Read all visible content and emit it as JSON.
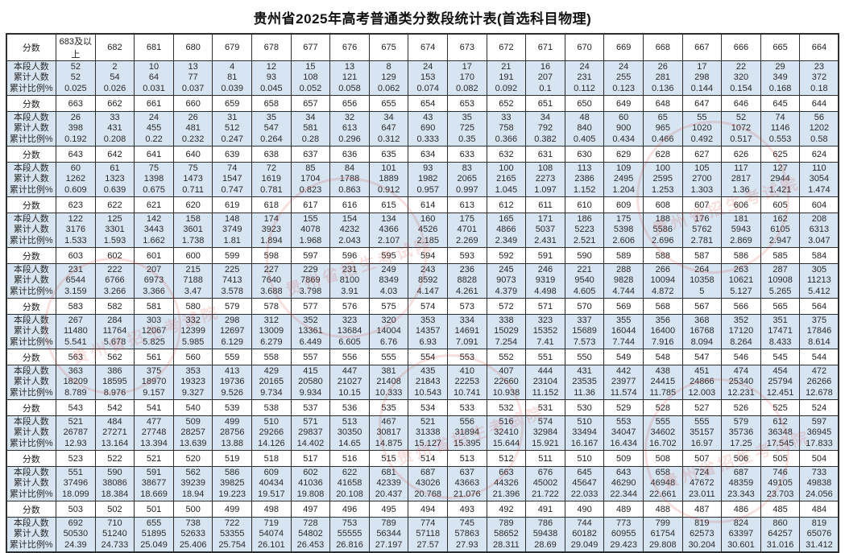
{
  "title": "贵州省2025年高考普通类分数段统计表(首选科目物理)",
  "row_labels": {
    "score": "分数",
    "count": "本段人数",
    "cumulative": "累计人数",
    "percent": "累计比例%"
  },
  "watermark_text": "贵州省招生考试院",
  "colors": {
    "band_bg": "#d7e5f2",
    "border": "#2e2e2e",
    "watermark": "#cf3f3a"
  },
  "bands": [
    {
      "scores": [
        "683及以上",
        "682",
        "681",
        "680",
        "679",
        "678",
        "677",
        "676",
        "675",
        "674",
        "673",
        "672",
        "671",
        "670",
        "669",
        "668",
        "667",
        "666",
        "665",
        "664"
      ],
      "counts": [
        "52",
        "2",
        "10",
        "13",
        "4",
        "12",
        "15",
        "13",
        "8",
        "24",
        "17",
        "21",
        "16",
        "24",
        "24",
        "26",
        "17",
        "22",
        "29",
        "23"
      ],
      "cumulative": [
        "52",
        "54",
        "64",
        "77",
        "81",
        "93",
        "108",
        "121",
        "129",
        "153",
        "170",
        "191",
        "207",
        "231",
        "255",
        "281",
        "298",
        "320",
        "349",
        "372"
      ],
      "percents": [
        "0.025",
        "0.026",
        "0.031",
        "0.037",
        "0.039",
        "0.045",
        "0.052",
        "0.058",
        "0.062",
        "0.074",
        "0.082",
        "0.092",
        "0.1",
        "0.112",
        "0.123",
        "0.136",
        "0.144",
        "0.154",
        "0.168",
        "0.18"
      ]
    },
    {
      "scores": [
        "663",
        "662",
        "661",
        "660",
        "659",
        "658",
        "657",
        "656",
        "655",
        "654",
        "653",
        "652",
        "651",
        "650",
        "649",
        "648",
        "647",
        "646",
        "645",
        "644"
      ],
      "counts": [
        "26",
        "33",
        "24",
        "26",
        "31",
        "35",
        "34",
        "32",
        "34",
        "43",
        "35",
        "33",
        "34",
        "48",
        "60",
        "65",
        "55",
        "52",
        "74",
        "56"
      ],
      "cumulative": [
        "398",
        "431",
        "455",
        "481",
        "512",
        "547",
        "581",
        "613",
        "647",
        "690",
        "725",
        "758",
        "792",
        "840",
        "900",
        "965",
        "1020",
        "1072",
        "1146",
        "1202"
      ],
      "percents": [
        "0.192",
        "0.208",
        "0.22",
        "0.232",
        "0.247",
        "0.264",
        "0.28",
        "0.296",
        "0.312",
        "0.333",
        "0.35",
        "0.366",
        "0.382",
        "0.405",
        "0.434",
        "0.466",
        "0.492",
        "0.517",
        "0.553",
        "0.58"
      ]
    },
    {
      "scores": [
        "643",
        "642",
        "641",
        "640",
        "639",
        "638",
        "637",
        "636",
        "635",
        "634",
        "633",
        "632",
        "631",
        "630",
        "629",
        "628",
        "627",
        "626",
        "625",
        "624"
      ],
      "counts": [
        "60",
        "61",
        "75",
        "75",
        "74",
        "72",
        "85",
        "84",
        "101",
        "93",
        "83",
        "100",
        "108",
        "113",
        "109",
        "100",
        "105",
        "117",
        "127",
        "110"
      ],
      "cumulative": [
        "1262",
        "1323",
        "1398",
        "1473",
        "1547",
        "1619",
        "1704",
        "1788",
        "1889",
        "1982",
        "2065",
        "2165",
        "2273",
        "2386",
        "2495",
        "2595",
        "2700",
        "2817",
        "2944",
        "3054"
      ],
      "percents": [
        "0.609",
        "0.639",
        "0.675",
        "0.711",
        "0.747",
        "0.781",
        "0.823",
        "0.863",
        "0.912",
        "0.957",
        "0.997",
        "1.045",
        "1.097",
        "1.152",
        "1.204",
        "1.253",
        "1.303",
        "1.36",
        "1.421",
        "1.474"
      ]
    },
    {
      "scores": [
        "623",
        "622",
        "621",
        "620",
        "619",
        "618",
        "617",
        "616",
        "615",
        "614",
        "613",
        "612",
        "611",
        "610",
        "609",
        "608",
        "607",
        "606",
        "605",
        "604"
      ],
      "counts": [
        "122",
        "125",
        "142",
        "158",
        "148",
        "174",
        "155",
        "154",
        "134",
        "160",
        "175",
        "165",
        "171",
        "186",
        "175",
        "188",
        "176",
        "181",
        "162",
        "208"
      ],
      "cumulative": [
        "3176",
        "3301",
        "3443",
        "3601",
        "3749",
        "3923",
        "4078",
        "4232",
        "4366",
        "4526",
        "4701",
        "4866",
        "5037",
        "5223",
        "5398",
        "5586",
        "5762",
        "5943",
        "6105",
        "6313"
      ],
      "percents": [
        "1.533",
        "1.593",
        "1.662",
        "1.738",
        "1.81",
        "1.894",
        "1.968",
        "2.043",
        "2.107",
        "2.185",
        "2.269",
        "2.349",
        "2.431",
        "2.521",
        "2.606",
        "2.696",
        "2.781",
        "2.869",
        "2.947",
        "3.047"
      ]
    },
    {
      "scores": [
        "603",
        "602",
        "601",
        "600",
        "599",
        "598",
        "597",
        "596",
        "595",
        "594",
        "593",
        "592",
        "591",
        "590",
        "589",
        "588",
        "587",
        "586",
        "585",
        "584"
      ],
      "counts": [
        "231",
        "222",
        "207",
        "215",
        "225",
        "227",
        "229",
        "231",
        "249",
        "243",
        "236",
        "245",
        "246",
        "221",
        "288",
        "266",
        "264",
        "263",
        "287",
        "305"
      ],
      "cumulative": [
        "6544",
        "6766",
        "6973",
        "7188",
        "7413",
        "7640",
        "7869",
        "8100",
        "8349",
        "8592",
        "8828",
        "9073",
        "9319",
        "9540",
        "9828",
        "10094",
        "10358",
        "10621",
        "10908",
        "11213"
      ],
      "percents": [
        "3.159",
        "3.266",
        "3.366",
        "3.47",
        "3.578",
        "3.688",
        "3.798",
        "3.91",
        "4.03",
        "4.147",
        "4.261",
        "4.379",
        "4.498",
        "4.605",
        "4.744",
        "4.872",
        "5",
        "5.127",
        "5.265",
        "5.412"
      ]
    },
    {
      "scores": [
        "583",
        "582",
        "581",
        "580",
        "579",
        "578",
        "577",
        "576",
        "575",
        "574",
        "573",
        "572",
        "571",
        "570",
        "569",
        "568",
        "567",
        "566",
        "565",
        "564"
      ],
      "counts": [
        "267",
        "284",
        "303",
        "332",
        "298",
        "312",
        "352",
        "323",
        "320",
        "353",
        "334",
        "338",
        "323",
        "337",
        "355",
        "356",
        "368",
        "352",
        "351",
        "375"
      ],
      "cumulative": [
        "11480",
        "11764",
        "12067",
        "12399",
        "12697",
        "13009",
        "13361",
        "13684",
        "14004",
        "14357",
        "14691",
        "15029",
        "15352",
        "15689",
        "16044",
        "16400",
        "16768",
        "17120",
        "17471",
        "17846"
      ],
      "percents": [
        "5.541",
        "5.678",
        "5.825",
        "5.985",
        "6.129",
        "6.279",
        "6.449",
        "6.605",
        "6.76",
        "6.93",
        "7.091",
        "7.254",
        "7.41",
        "7.573",
        "7.744",
        "7.916",
        "8.094",
        "8.264",
        "8.433",
        "8.614"
      ]
    },
    {
      "scores": [
        "563",
        "562",
        "561",
        "560",
        "559",
        "558",
        "557",
        "556",
        "555",
        "554",
        "553",
        "552",
        "551",
        "550",
        "549",
        "548",
        "547",
        "546",
        "545",
        "544"
      ],
      "counts": [
        "363",
        "386",
        "375",
        "353",
        "413",
        "429",
        "415",
        "447",
        "381",
        "435",
        "410",
        "407",
        "444",
        "431",
        "442",
        "438",
        "451",
        "474",
        "454",
        "472"
      ],
      "cumulative": [
        "18209",
        "18595",
        "18970",
        "19323",
        "19736",
        "20165",
        "20580",
        "21027",
        "21408",
        "21843",
        "22253",
        "22660",
        "23104",
        "23535",
        "23977",
        "24415",
        "24866",
        "25340",
        "25794",
        "26266"
      ],
      "percents": [
        "8.789",
        "8.976",
        "9.157",
        "9.327",
        "9.526",
        "9.734",
        "9.934",
        "10.15",
        "10.333",
        "10.543",
        "10.741",
        "10.938",
        "11.152",
        "11.36",
        "11.574",
        "11.785",
        "12.003",
        "12.231",
        "12.451",
        "12.678"
      ]
    },
    {
      "scores": [
        "543",
        "542",
        "541",
        "540",
        "539",
        "538",
        "537",
        "536",
        "535",
        "534",
        "533",
        "532",
        "531",
        "530",
        "529",
        "528",
        "527",
        "526",
        "525",
        "524"
      ],
      "counts": [
        "521",
        "484",
        "477",
        "509",
        "499",
        "510",
        "571",
        "513",
        "467",
        "521",
        "556",
        "516",
        "574",
        "510",
        "553",
        "555",
        "555",
        "579",
        "612",
        "597"
      ],
      "cumulative": [
        "26787",
        "27271",
        "27748",
        "28257",
        "28756",
        "29266",
        "29837",
        "30350",
        "30817",
        "31338",
        "31894",
        "32410",
        "32984",
        "33494",
        "34047",
        "34602",
        "35157",
        "35736",
        "36348",
        "36945"
      ],
      "percents": [
        "12.93",
        "13.164",
        "13.394",
        "13.639",
        "13.88",
        "14.126",
        "14.402",
        "14.65",
        "14.875",
        "15.127",
        "15.395",
        "15.644",
        "15.921",
        "16.167",
        "16.434",
        "16.702",
        "16.97",
        "17.25",
        "17.545",
        "17.833"
      ]
    },
    {
      "scores": [
        "523",
        "522",
        "521",
        "520",
        "519",
        "518",
        "517",
        "516",
        "515",
        "514",
        "513",
        "512",
        "511",
        "510",
        "509",
        "508",
        "507",
        "506",
        "505",
        "504"
      ],
      "counts": [
        "551",
        "590",
        "591",
        "562",
        "586",
        "609",
        "602",
        "622",
        "681",
        "687",
        "637",
        "663",
        "676",
        "645",
        "643",
        "658",
        "724",
        "687",
        "746",
        "733"
      ],
      "cumulative": [
        "37496",
        "38086",
        "38677",
        "39239",
        "39825",
        "40434",
        "41036",
        "41658",
        "42339",
        "43026",
        "43663",
        "44326",
        "45002",
        "45647",
        "46290",
        "46948",
        "47672",
        "48359",
        "49105",
        "49838"
      ],
      "percents": [
        "18.099",
        "18.384",
        "18.669",
        "18.94",
        "19.223",
        "19.517",
        "19.808",
        "20.108",
        "20.437",
        "20.768",
        "21.076",
        "21.396",
        "21.722",
        "22.033",
        "22.344",
        "22.661",
        "23.011",
        "23.343",
        "23.703",
        "24.056"
      ]
    },
    {
      "scores": [
        "503",
        "502",
        "501",
        "500",
        "499",
        "498",
        "497",
        "496",
        "495",
        "494",
        "493",
        "492",
        "491",
        "490",
        "489",
        "488",
        "487",
        "486",
        "485",
        "484"
      ],
      "counts": [
        "692",
        "710",
        "655",
        "738",
        "722",
        "719",
        "728",
        "753",
        "789",
        "774",
        "745",
        "789",
        "786",
        "744",
        "773",
        "799",
        "819",
        "824",
        "860",
        "819"
      ],
      "cumulative": [
        "50530",
        "51240",
        "51895",
        "52633",
        "53355",
        "54074",
        "54802",
        "55555",
        "56344",
        "57118",
        "57863",
        "58652",
        "59438",
        "60182",
        "60955",
        "61754",
        "62573",
        "63397",
        "64257",
        "65076"
      ],
      "percents": [
        "24.39",
        "24.733",
        "25.049",
        "25.406",
        "25.754",
        "26.101",
        "26.453",
        "26.816",
        "27.197",
        "27.57",
        "27.93",
        "28.311",
        "28.69",
        "29.049",
        "29.423",
        "29.808",
        "30.204",
        "30.601",
        "31.016",
        "31.412"
      ]
    }
  ]
}
